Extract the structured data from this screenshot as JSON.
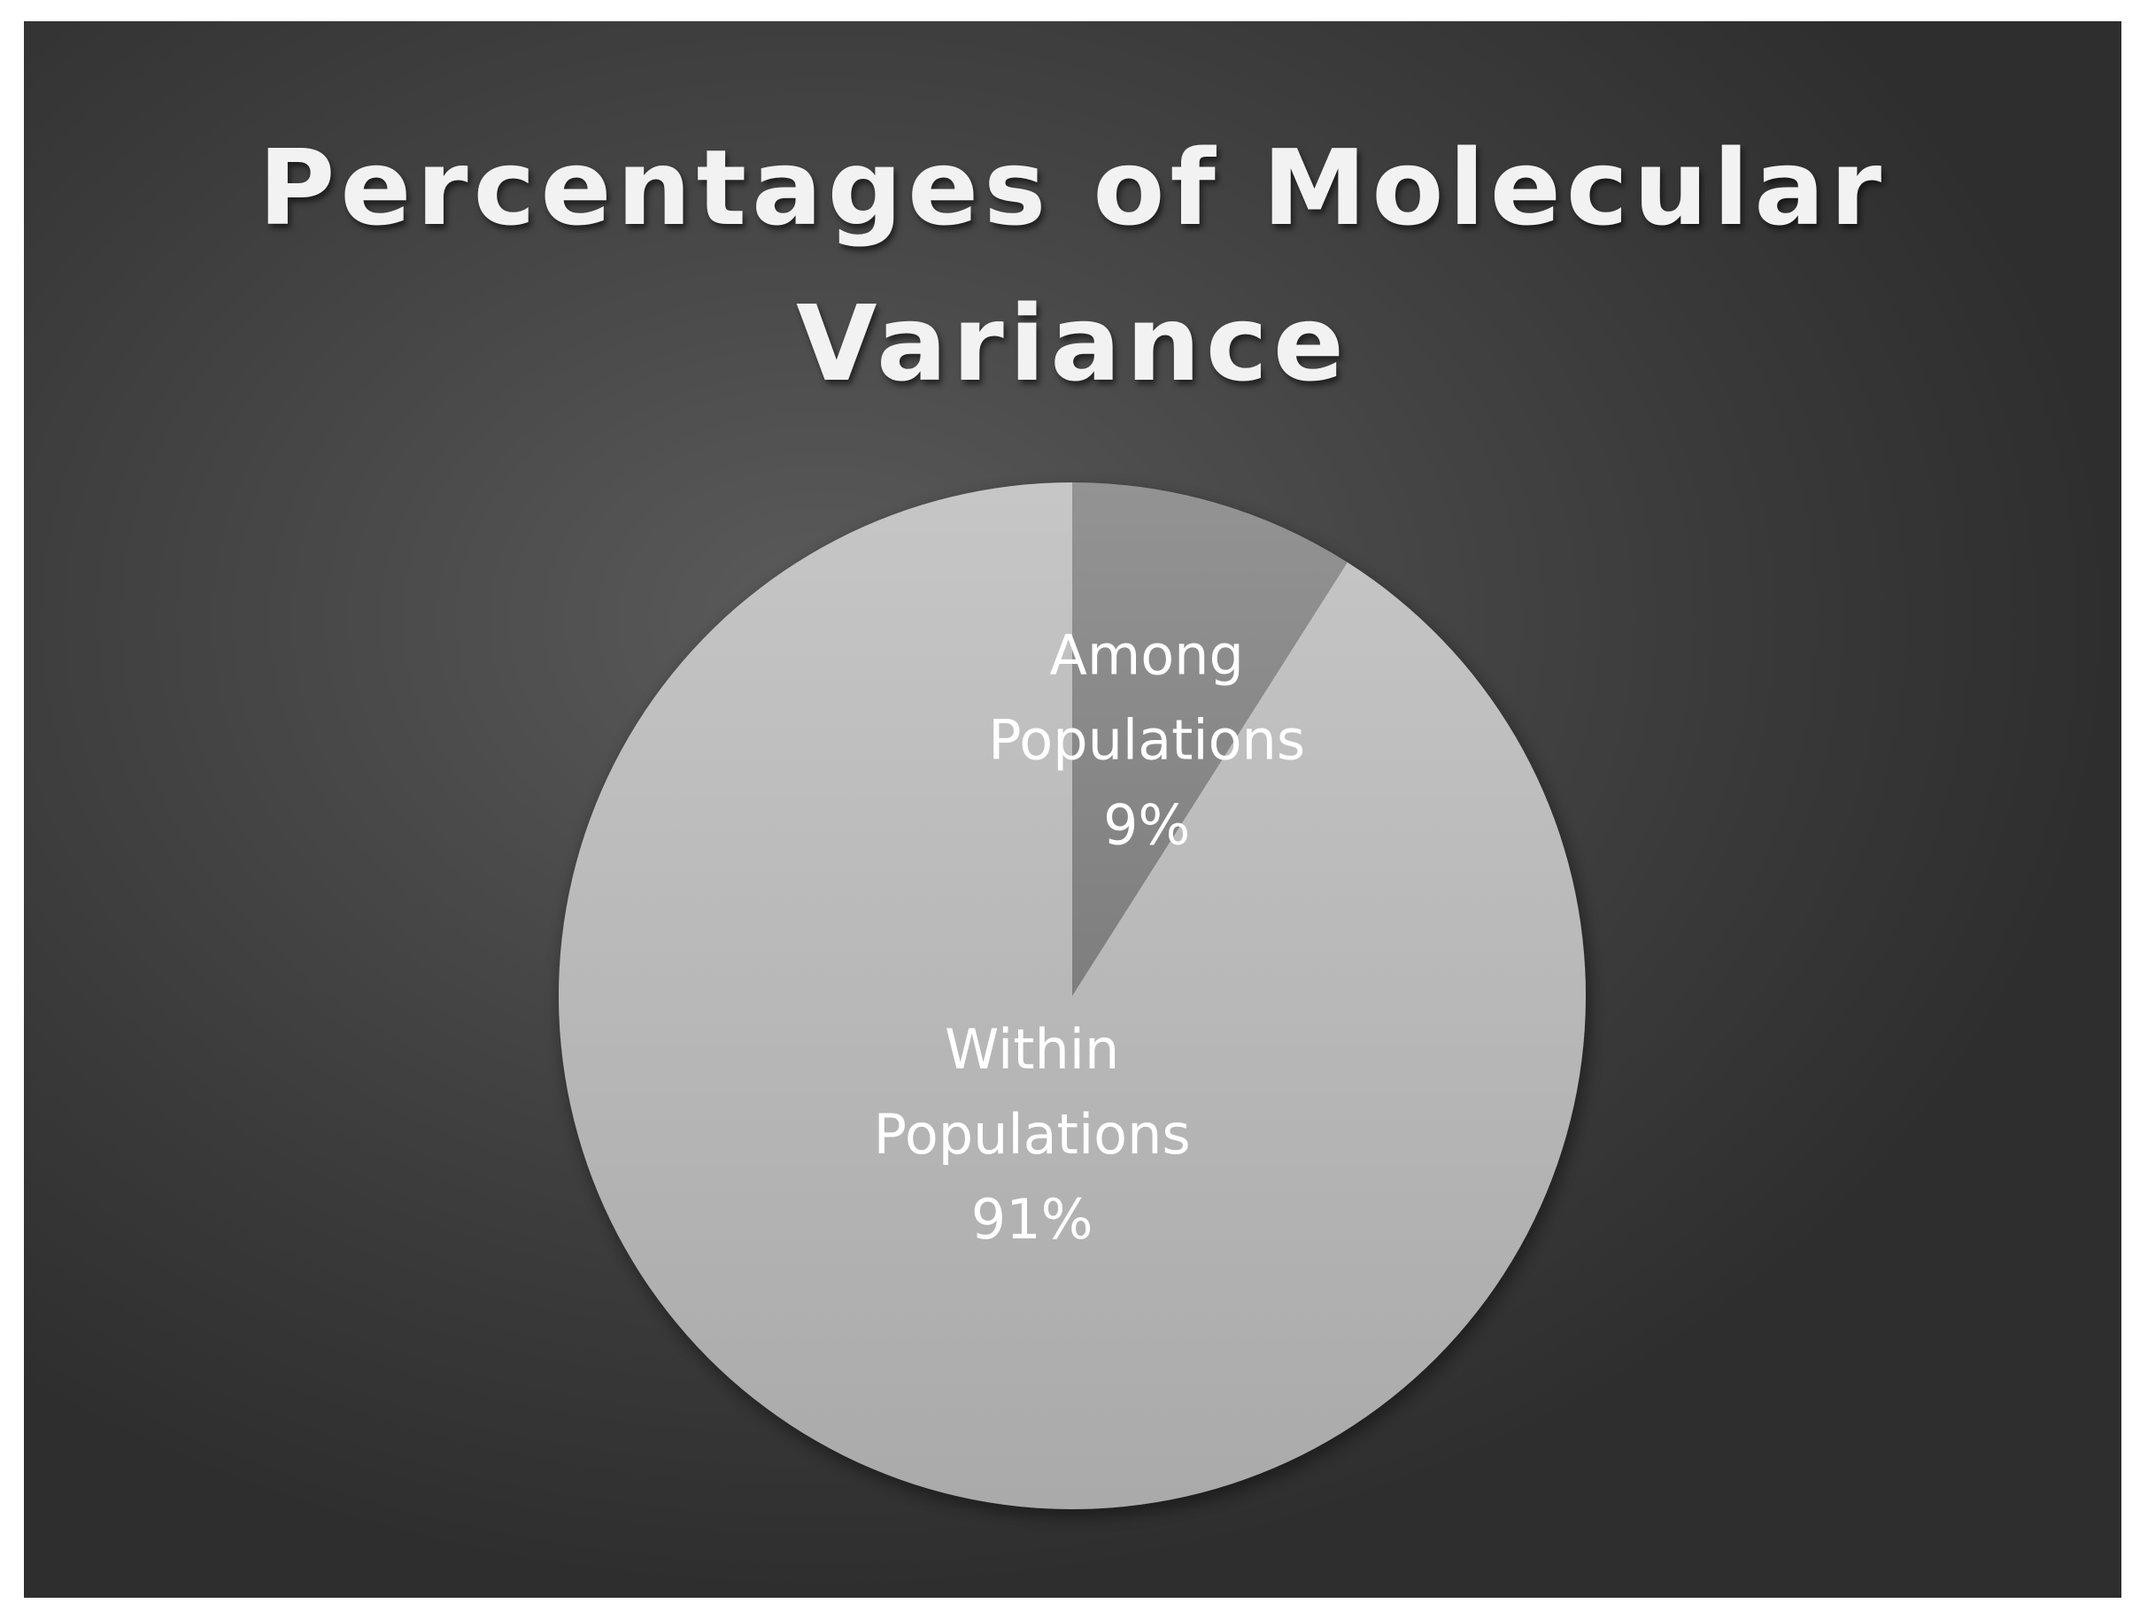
{
  "chart_data": {
    "type": "pie",
    "title": "Percentages of Molecular Variance",
    "title_lines": [
      "Percentages of Molecular",
      "Variance"
    ],
    "slices": [
      {
        "label_lines": [
          "Among",
          "Populations"
        ],
        "value_label": "9%",
        "value": 9,
        "color": "#8c8c8c"
      },
      {
        "label_lines": [
          "Within",
          "Populations"
        ],
        "value_label": "91%",
        "value": 91,
        "color": "#bdbdbd"
      }
    ],
    "start_angle_deg": 0,
    "direction": "clockwise",
    "legend": "none"
  },
  "colors": {
    "background_center": "#5b5b5b",
    "background_edge": "#2e2e2e",
    "title": "#f2f2f2",
    "label": "#ffffff"
  }
}
